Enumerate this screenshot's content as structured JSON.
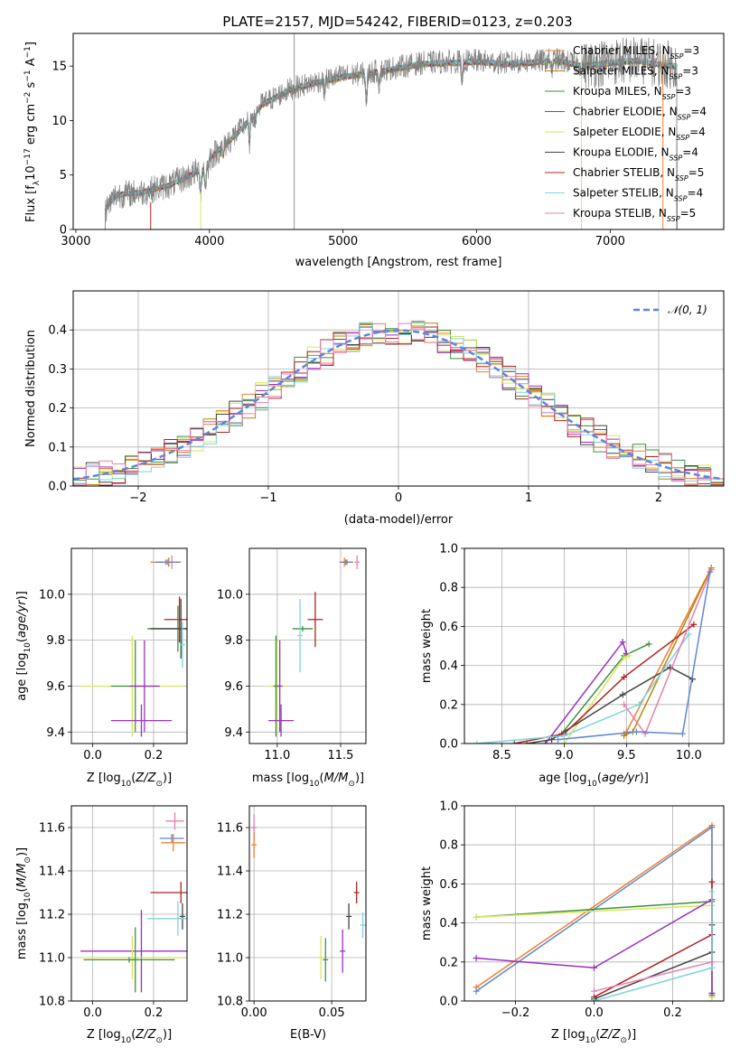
{
  "figure_title": "PLATE=2157, MJD=54242, FIBERID=0123, z=0.203",
  "palette": [
    "#808080",
    "#f07f2f",
    "#b8860b",
    "#3f8f3f",
    "#9b30c0",
    "#d9e65a",
    "#444444",
    "#b22222",
    "#7fd3dd",
    "#e87fb0",
    "#5f86d6",
    "#a0a0a0"
  ],
  "chart_data": [
    {
      "id": "spectrum",
      "type": "line",
      "title": "PLATE=2157, MJD=54242, FIBERID=0123, z=0.203",
      "xlabel": "wavelength [Angstrom, rest frame]",
      "ylabel": "Flux [f_λ 10^-17 erg cm^-2 s^-1 A^-1]",
      "xlim": [
        2980,
        7850
      ],
      "ylim": [
        0,
        18
      ],
      "xticks": [
        3000,
        4000,
        5000,
        6000,
        7000
      ],
      "yticks": [
        0,
        5,
        10,
        15
      ],
      "grid": false,
      "legend": "top-right",
      "continuum": {
        "x": [
          3220,
          3300,
          3500,
          3700,
          3900,
          4000,
          4200,
          4400,
          4600,
          4800,
          5000,
          5200,
          5400,
          5600,
          5800,
          6000,
          6200,
          6400,
          6600,
          6800,
          7000,
          7200,
          7400,
          7500
        ],
        "y": [
          2.0,
          3.5,
          3.8,
          4.5,
          5.8,
          6.5,
          8.7,
          11.5,
          12.8,
          13.5,
          14.0,
          14.3,
          14.8,
          15.2,
          15.3,
          15.4,
          15.2,
          15.3,
          15.5,
          15.0,
          15.3,
          15.5,
          15.1,
          15.0
        ]
      },
      "series": [
        {
          "name": "Chabrier MILES, N_SSP=3"
        },
        {
          "name": "Salpeter MILES, N_SSP=3"
        },
        {
          "name": "Kroupa MILES, N_SSP=3"
        },
        {
          "name": "Chabrier ELODIE, N_SSP=4"
        },
        {
          "name": "Salpeter ELODIE, N_SSP=4"
        },
        {
          "name": "Kroupa ELODIE, N_SSP=4"
        },
        {
          "name": "Chabrier STELIB, N_SSP=5"
        },
        {
          "name": "Salpeter STELIB, N_SSP=4"
        },
        {
          "name": "Kroupa STELIB, N_SSP=5"
        }
      ],
      "legend_labels": [
        {
          "name": "Chabrier MILES, N",
          "sub": "SSP",
          "tail": "=3"
        },
        {
          "name": "Salpeter MILES, N",
          "sub": "SSP",
          "tail": "=3"
        },
        {
          "name": "Kroupa MILES, N",
          "sub": "SSP",
          "tail": "=3"
        },
        {
          "name": "Chabrier ELODIE, N",
          "sub": "SSP",
          "tail": "=4"
        },
        {
          "name": "Salpeter ELODIE, N",
          "sub": "SSP",
          "tail": "=4"
        },
        {
          "name": "Kroupa ELODIE, N",
          "sub": "SSP",
          "tail": "=4"
        },
        {
          "name": "Chabrier STELIB, N",
          "sub": "SSP",
          "tail": "=5"
        },
        {
          "name": "Salpeter STELIB, N",
          "sub": "SSP",
          "tail": "=4"
        },
        {
          "name": "Kroupa STELIB, N",
          "sub": "SSP",
          "tail": "=5"
        }
      ]
    },
    {
      "id": "residuals",
      "type": "line",
      "xlabel": "(data-model)/error",
      "ylabel": "Normed distribution",
      "xlim": [
        -2.5,
        2.5
      ],
      "ylim": [
        0,
        0.5
      ],
      "xticks": [
        -2,
        -1,
        0,
        1,
        2
      ],
      "yticks": [
        0.0,
        0.1,
        0.2,
        0.3,
        0.4
      ],
      "grid": true,
      "legend": "top-right",
      "bin_width": 0.1,
      "n_histograms": 9,
      "gaussian": {
        "name": "N(0,1)",
        "mu": 0,
        "sigma": 1
      }
    },
    {
      "id": "age_vs_Z",
      "type": "scatter",
      "xlabel": "Z [log10(Z/Z⊙)]",
      "ylabel": "age [log10(age/yr)]",
      "xlim": [
        -0.07,
        0.31
      ],
      "ylim": [
        9.35,
        10.2
      ],
      "xticks": [
        0.0,
        0.2
      ],
      "yticks": [
        9.4,
        9.6,
        9.8,
        10.0
      ],
      "grid": true,
      "points": [
        {
          "x": 0.24,
          "y": 10.14,
          "xerr": 0.05,
          "yerr": 0.0,
          "c": 1
        },
        {
          "x": 0.25,
          "y": 10.14,
          "xerr": 0.04,
          "yerr": 0.02,
          "c": 2
        },
        {
          "x": 0.26,
          "y": 10.14,
          "xerr": 0.03,
          "yerr": 0.03,
          "c": 9
        },
        {
          "x": 0.245,
          "y": 10.14,
          "xerr": 0.04,
          "yerr": 0.0,
          "c": 10
        },
        {
          "x": 0.285,
          "y": 9.89,
          "xerr": 0.05,
          "yerr": 0.1,
          "c": 7
        },
        {
          "x": 0.28,
          "y": 9.85,
          "xerr": 0.1,
          "yerr": 0.1,
          "c": 3
        },
        {
          "x": 0.29,
          "y": 9.85,
          "xerr": 0.1,
          "yerr": 0.13,
          "c": 6
        },
        {
          "x": 0.295,
          "y": 9.78,
          "xerr": 0.0,
          "yerr": 0.1,
          "c": 8
        },
        {
          "x": 0.13,
          "y": 9.6,
          "xerr": 0.17,
          "yerr": 0.22,
          "c": 5
        },
        {
          "x": 0.14,
          "y": 9.6,
          "xerr": 0.08,
          "yerr": 0.2,
          "c": 3
        },
        {
          "x": 0.16,
          "y": 9.45,
          "xerr": 0.1,
          "yerr": 0.07,
          "c": 4
        },
        {
          "x": 0.17,
          "y": 9.6,
          "xerr": 0.05,
          "yerr": 0.2,
          "c": 4
        }
      ]
    },
    {
      "id": "age_vs_mass",
      "type": "scatter",
      "xlabel": "mass [log10(M/M⊙)]",
      "ylabel": "",
      "xlim": [
        10.78,
        11.7
      ],
      "ylim": [
        9.35,
        10.2
      ],
      "xticks": [
        11.0,
        11.5
      ],
      "yticks": [
        9.4,
        9.6,
        9.8,
        10.0
      ],
      "grid": true,
      "points": [
        {
          "x": 11.53,
          "y": 10.14,
          "xerr": 0.04,
          "yerr": 0.02,
          "c": 1
        },
        {
          "x": 11.55,
          "y": 10.14,
          "xerr": 0.05,
          "yerr": 0.0,
          "c": 2
        },
        {
          "x": 11.63,
          "y": 10.14,
          "xerr": 0.02,
          "yerr": 0.03,
          "c": 9
        },
        {
          "x": 11.54,
          "y": 10.14,
          "xerr": 0.04,
          "yerr": 0.0,
          "c": 10
        },
        {
          "x": 11.3,
          "y": 9.89,
          "xerr": 0.06,
          "yerr": 0.12,
          "c": 7
        },
        {
          "x": 11.2,
          "y": 9.85,
          "xerr": 0.08,
          "yerr": 0.0,
          "c": 3
        },
        {
          "x": 11.18,
          "y": 9.82,
          "xerr": 0.0,
          "yerr": 0.16,
          "c": 8
        },
        {
          "x": 11.0,
          "y": 9.6,
          "xerr": 0.08,
          "yerr": 0.2,
          "c": 5
        },
        {
          "x": 10.99,
          "y": 9.6,
          "xerr": 0.0,
          "yerr": 0.22,
          "c": 3
        },
        {
          "x": 11.03,
          "y": 9.45,
          "xerr": 0.1,
          "yerr": 0.07,
          "c": 4
        },
        {
          "x": 11.02,
          "y": 9.6,
          "xerr": 0.0,
          "yerr": 0.2,
          "c": 4
        }
      ]
    },
    {
      "id": "mass_weight_vs_age",
      "type": "line",
      "xlabel": "age [log10(age/yr)]",
      "ylabel": "mass weight",
      "xlim": [
        8.2,
        10.28
      ],
      "ylim": [
        0,
        1
      ],
      "xticks": [
        8.5,
        9.0,
        9.5,
        10.0
      ],
      "yticks": [
        0.0,
        0.2,
        0.4,
        0.6,
        0.8,
        1.0
      ],
      "grid": true,
      "series": [
        {
          "c": 1,
          "x": [
            9.48,
            9.5,
            10.18
          ],
          "y": [
            0.05,
            0.06,
            0.9
          ]
        },
        {
          "c": 2,
          "x": [
            9.48,
            9.55,
            10.18
          ],
          "y": [
            0.04,
            0.06,
            0.9
          ]
        },
        {
          "c": 3,
          "x": [
            8.98,
            9.48,
            9.68
          ],
          "y": [
            0.05,
            0.45,
            0.51
          ]
        },
        {
          "c": 4,
          "x": [
            8.85,
            9.47,
            9.5
          ],
          "y": [
            0.0,
            0.52,
            0.46
          ]
        },
        {
          "c": 5,
          "x": [
            9.0,
            9.48,
            9.52
          ],
          "y": [
            0.0,
            0.44,
            0.45
          ]
        },
        {
          "c": 6,
          "x": [
            8.7,
            8.9,
            9.47,
            9.85,
            10.03
          ],
          "y": [
            0.0,
            0.02,
            0.25,
            0.39,
            0.33
          ]
        },
        {
          "c": 7,
          "x": [
            8.6,
            9.0,
            9.48,
            10.04
          ],
          "y": [
            0.0,
            0.05,
            0.34,
            0.61
          ]
        },
        {
          "c": 8,
          "x": [
            8.3,
            9.0,
            9.6,
            10.0
          ],
          "y": [
            0.0,
            0.04,
            0.2,
            0.56
          ]
        },
        {
          "c": 9,
          "x": [
            9.48,
            9.65,
            10.18
          ],
          "y": [
            0.2,
            0.05,
            0.89
          ]
        },
        {
          "c": 10,
          "x": [
            8.95,
            9.58,
            9.95,
            10.17
          ],
          "y": [
            0.02,
            0.06,
            0.05,
            0.88
          ]
        }
      ]
    },
    {
      "id": "mass_vs_Z",
      "type": "scatter",
      "xlabel": "Z [log10(Z/Z⊙)]",
      "ylabel": "mass [log10(M/M⊙)]",
      "xlim": [
        -0.07,
        0.31
      ],
      "ylim": [
        10.8,
        11.7
      ],
      "xticks": [
        0.0,
        0.2
      ],
      "yticks": [
        10.8,
        11.0,
        11.2,
        11.4,
        11.6
      ],
      "grid": true,
      "points": [
        {
          "x": 0.27,
          "y": 11.63,
          "xerr": 0.03,
          "yerr": 0.04,
          "c": 9
        },
        {
          "x": 0.26,
          "y": 11.55,
          "xerr": 0.04,
          "yerr": 0.02,
          "c": 10
        },
        {
          "x": 0.265,
          "y": 11.53,
          "xerr": 0.04,
          "yerr": 0.04,
          "c": 1
        },
        {
          "x": 0.29,
          "y": 11.3,
          "xerr": 0.1,
          "yerr": 0.05,
          "c": 7
        },
        {
          "x": 0.295,
          "y": 11.19,
          "xerr": 0.0,
          "yerr": 0.06,
          "c": 6
        },
        {
          "x": 0.28,
          "y": 11.18,
          "xerr": 0.1,
          "yerr": 0.08,
          "c": 8
        },
        {
          "x": 0.16,
          "y": 11.03,
          "xerr": 0.2,
          "yerr": 0.19,
          "c": 4
        },
        {
          "x": 0.13,
          "y": 11.0,
          "xerr": 0.17,
          "yerr": 0.1,
          "c": 5
        },
        {
          "x": 0.14,
          "y": 10.99,
          "xerr": 0.0,
          "yerr": 0.15,
          "c": 3
        },
        {
          "x": 0.12,
          "y": 10.99,
          "xerr": 0.15,
          "yerr": 0.0,
          "c": 3
        }
      ]
    },
    {
      "id": "mass_vs_ebv",
      "type": "scatter",
      "xlabel": "E(B-V)",
      "ylabel": "",
      "xlim": [
        -0.003,
        0.072
      ],
      "ylim": [
        10.8,
        11.7
      ],
      "xticks": [
        0.0,
        0.05
      ],
      "yticks": [
        10.8,
        11.0,
        11.2,
        11.4,
        11.6
      ],
      "grid": true,
      "points": [
        {
          "x": 0.0,
          "y": 11.6,
          "xerr": 0.0,
          "yerr": 0.06,
          "c": 9
        },
        {
          "x": 0.0,
          "y": 11.52,
          "xerr": 0.0,
          "yerr": 0.06,
          "c": 1
        },
        {
          "x": 0.043,
          "y": 11.0,
          "xerr": 0.0,
          "yerr": 0.1,
          "c": 5
        },
        {
          "x": 0.046,
          "y": 10.99,
          "xerr": 0.0,
          "yerr": 0.1,
          "c": 3
        },
        {
          "x": 0.057,
          "y": 11.03,
          "xerr": 0.0,
          "yerr": 0.1,
          "c": 4
        },
        {
          "x": 0.061,
          "y": 11.19,
          "xerr": 0.0,
          "yerr": 0.06,
          "c": 6
        },
        {
          "x": 0.066,
          "y": 11.3,
          "xerr": 0.0,
          "yerr": 0.05,
          "c": 7
        },
        {
          "x": 0.07,
          "y": 11.15,
          "xerr": 0.0,
          "yerr": 0.06,
          "c": 8
        }
      ]
    },
    {
      "id": "mass_weight_vs_Z",
      "type": "line",
      "xlabel": "Z [log10(Z/Z⊙)]",
      "ylabel": "mass weight",
      "xlim": [
        -0.33,
        0.33
      ],
      "ylim": [
        0,
        1
      ],
      "xticks": [
        -0.2,
        0.0,
        0.2
      ],
      "yticks": [
        0.0,
        0.2,
        0.4,
        0.6,
        0.8,
        1.0
      ],
      "grid": true,
      "series": [
        {
          "c": 1,
          "x": [
            -0.3,
            0.3,
            0.3
          ],
          "y": [
            0.07,
            0.9,
            0.03
          ]
        },
        {
          "c": 10,
          "x": [
            -0.3,
            0.3,
            0.3
          ],
          "y": [
            0.05,
            0.89,
            0.02
          ]
        },
        {
          "c": 3,
          "x": [
            -0.3,
            0.3,
            0.3
          ],
          "y": [
            0.43,
            0.51,
            0.03
          ]
        },
        {
          "c": 5,
          "x": [
            -0.3,
            0.3,
            0.3
          ],
          "y": [
            0.43,
            0.49,
            0.02
          ]
        },
        {
          "c": 4,
          "x": [
            -0.3,
            0.0,
            0.3,
            0.3
          ],
          "y": [
            0.22,
            0.17,
            0.52,
            0.04
          ]
        },
        {
          "c": 7,
          "x": [
            0.0,
            0.3,
            0.3
          ],
          "y": [
            0.02,
            0.34,
            0.61
          ]
        },
        {
          "c": 6,
          "x": [
            0.0,
            0.3,
            0.3
          ],
          "y": [
            0.01,
            0.25,
            0.39
          ]
        },
        {
          "c": 8,
          "x": [
            0.0,
            0.3,
            0.3
          ],
          "y": [
            0.0,
            0.17,
            0.56
          ]
        },
        {
          "c": 9,
          "x": [
            0.0,
            0.3
          ],
          "y": [
            0.05,
            0.2
          ]
        }
      ]
    }
  ]
}
